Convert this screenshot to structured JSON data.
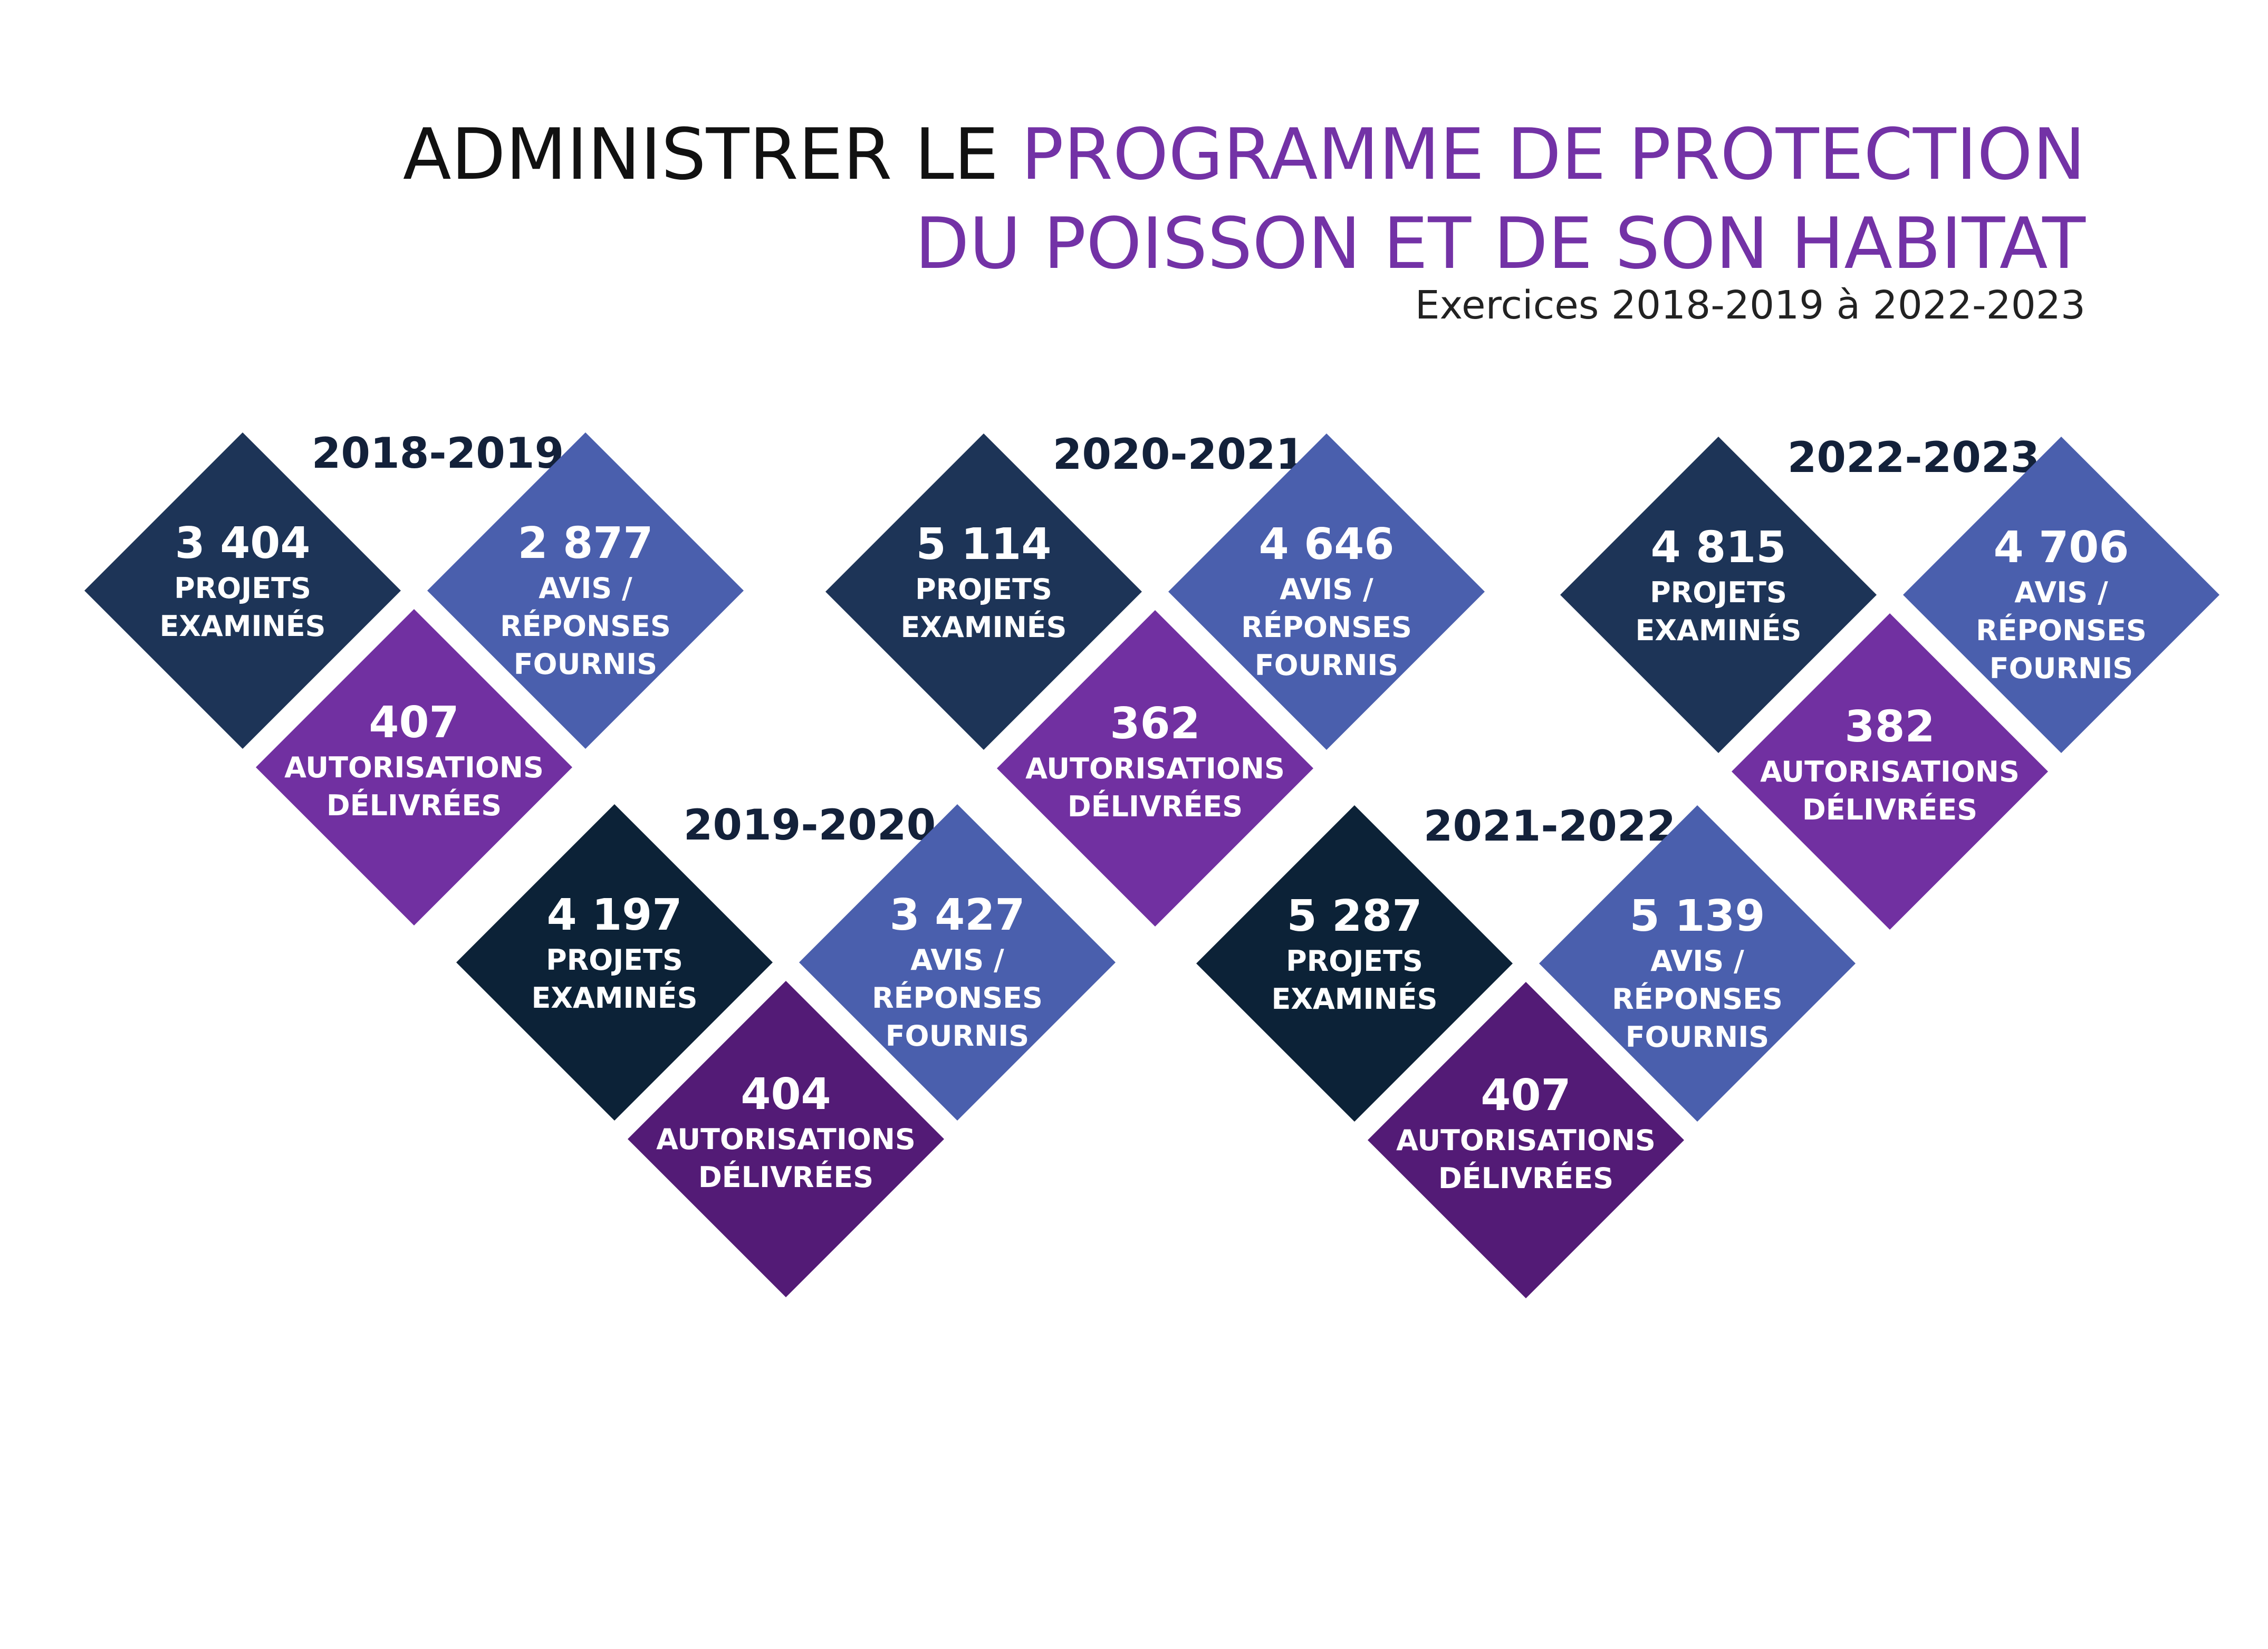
{
  "header": {
    "title_line1_black": "ADMINISTRER LE",
    "title_line1_purple": "PROGRAMME DE PROTECTION",
    "title_line2_purple": "DU POISSON ET DE SON HABITAT",
    "subtitle": "Exercices 2018-2019 à 2022-2023"
  },
  "labels": {
    "projets": [
      "PROJETS",
      "EXAMINÉS"
    ],
    "avis": [
      "AVIS /",
      "RÉPONSES",
      "FOURNIS"
    ],
    "autorisations": [
      "AUTORISATIONS",
      "DÉLIVRÉES"
    ]
  },
  "years": [
    {
      "year": "2018-2019",
      "projets": "3 404",
      "avis": "2 877",
      "autorisations": "407"
    },
    {
      "year": "2019-2020",
      "projets": "4 197",
      "avis": "3 427",
      "autorisations": "404"
    },
    {
      "year": "2020-2021",
      "projets": "5 114",
      "avis": "4 646",
      "autorisations": "362"
    },
    {
      "year": "2021-2022",
      "projets": "5 287",
      "avis": "5 139",
      "autorisations": "407"
    },
    {
      "year": "2022-2023",
      "projets": "4 815",
      "avis": "4 706",
      "autorisations": "382"
    }
  ],
  "colors": {
    "projets": "#1d3457",
    "projets_alt": "#0c2237",
    "avis": "#4a5fad",
    "autorisations": "#7130a1",
    "autorisations_alt": "#531b76",
    "title_accent": "#7332a6",
    "year_text": "#13213a"
  }
}
